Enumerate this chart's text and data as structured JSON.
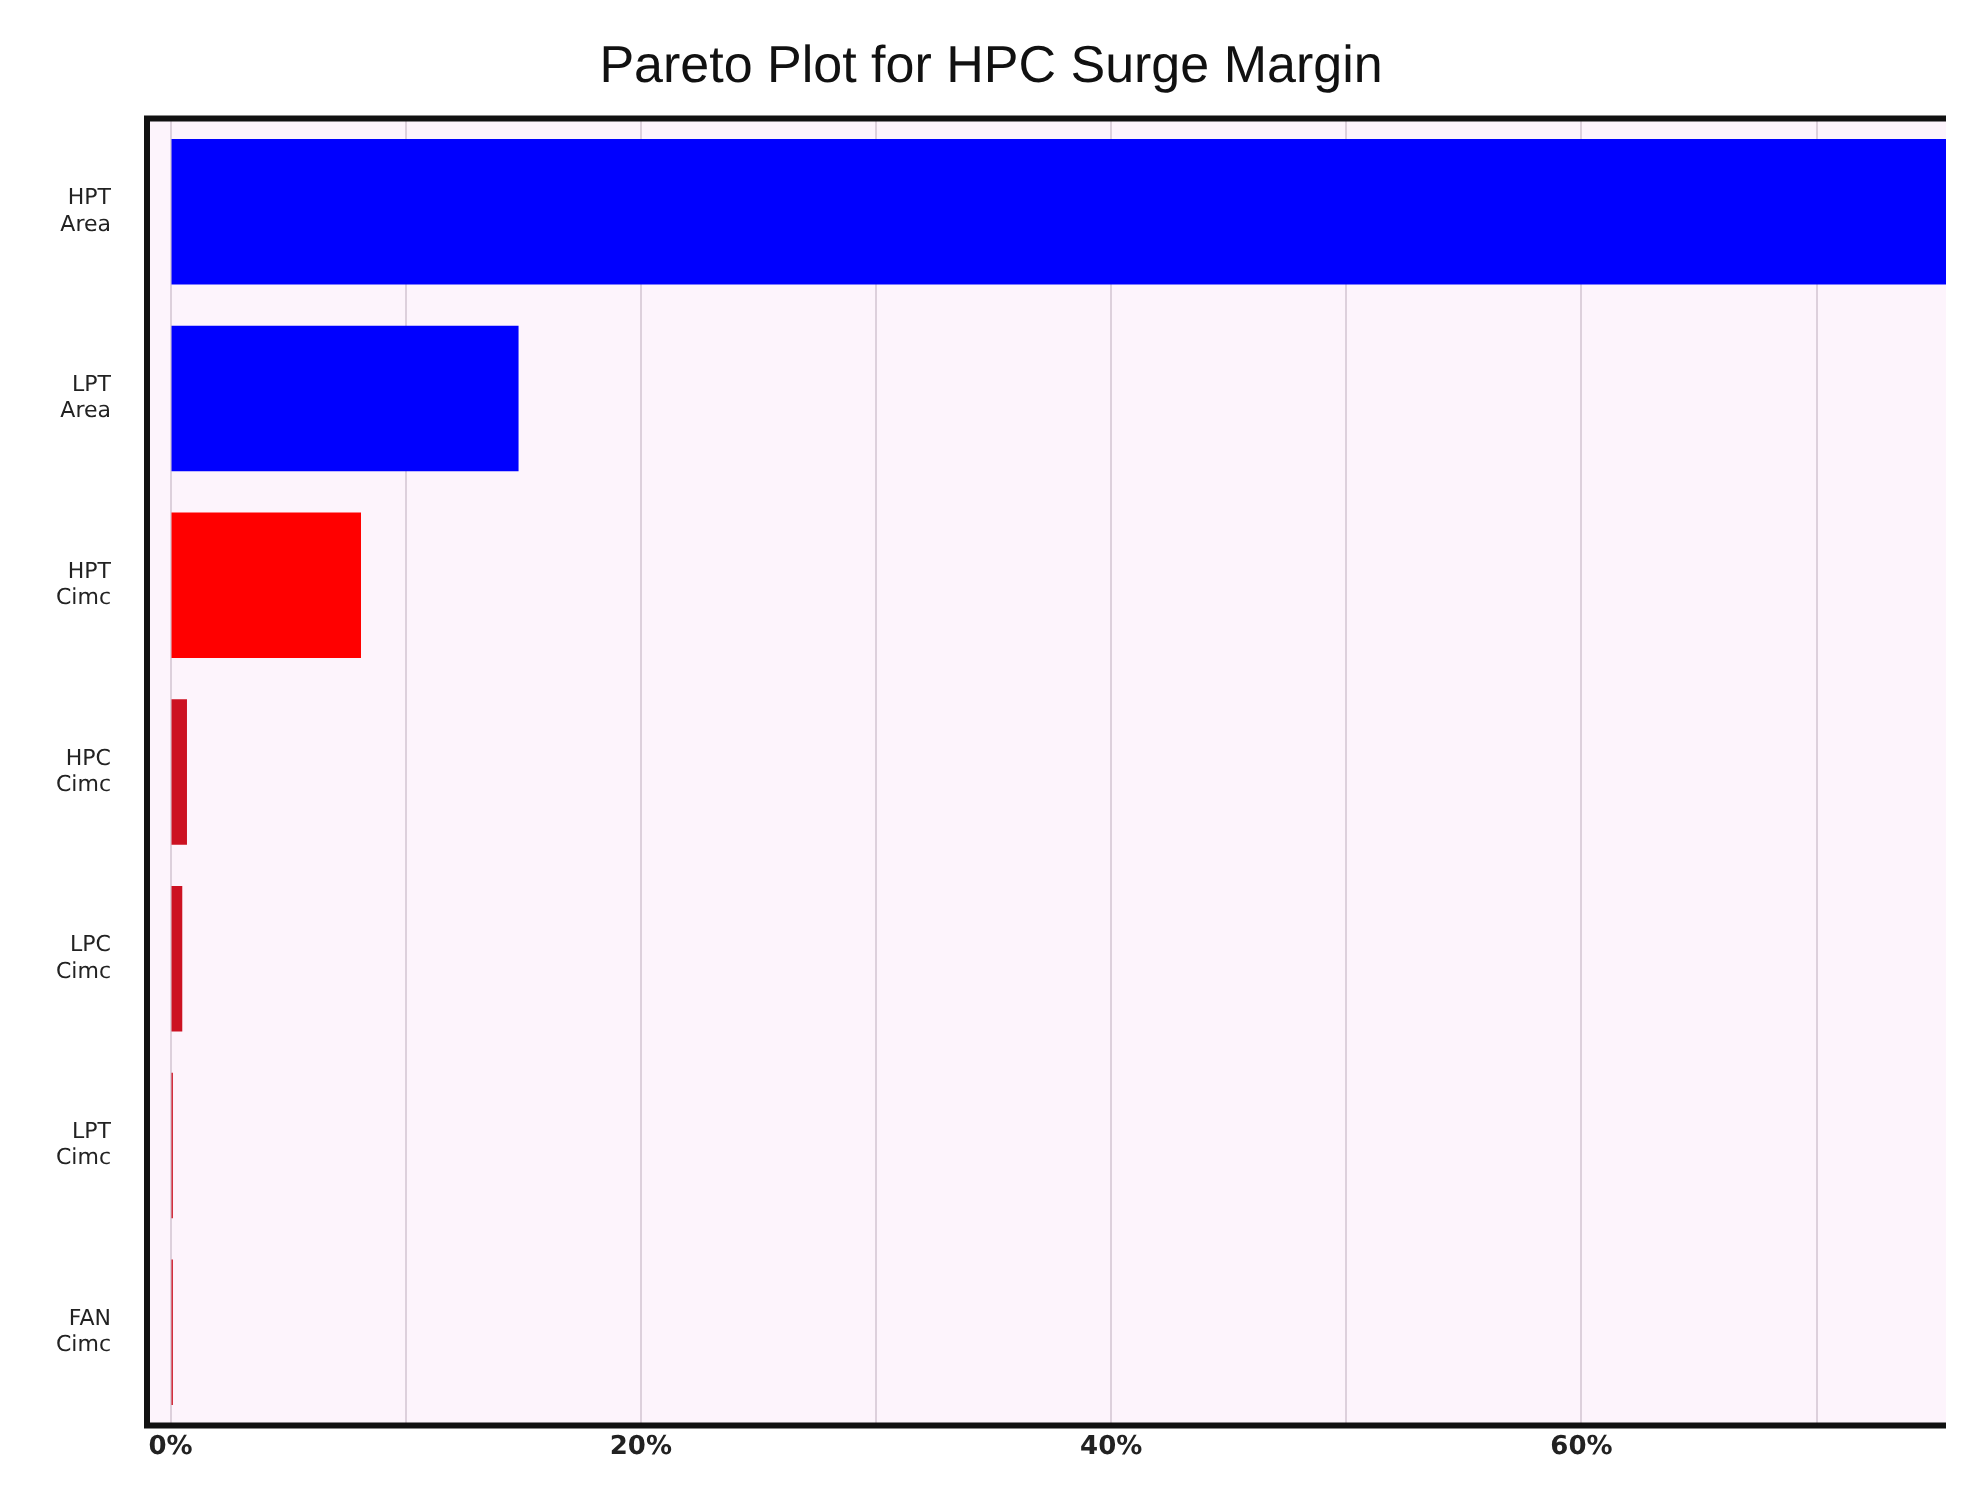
{
  "chart_data": {
    "type": "bar",
    "orientation": "horizontal",
    "title": "Pareto Plot for HPC Surge Margin",
    "categories": [
      "HPT Area",
      "LPT Area",
      "HPT Cimc",
      "HPC Cimc",
      "LPC Cimc",
      "LPT Cimc",
      "FAN Cimc"
    ],
    "values": [
      75.5,
      14.8,
      8.1,
      0.7,
      0.5,
      0.1,
      0.1
    ],
    "colors": [
      "#0000ff",
      "#0000ff",
      "#ff0000",
      "#cc1122",
      "#cc1122",
      "#cc1122",
      "#cc1122"
    ],
    "xlim": [
      -1,
      75.5
    ],
    "xticks": [
      {
        "value": 0,
        "label": "0%"
      },
      {
        "value": 10,
        "label": null
      },
      {
        "value": 20,
        "label": "20%"
      },
      {
        "value": 30,
        "label": null
      },
      {
        "value": 40,
        "label": "40%"
      },
      {
        "value": 50,
        "label": null
      },
      {
        "value": 60,
        "label": "60%"
      },
      {
        "value": 70,
        "label": null
      }
    ],
    "grid": "x"
  }
}
